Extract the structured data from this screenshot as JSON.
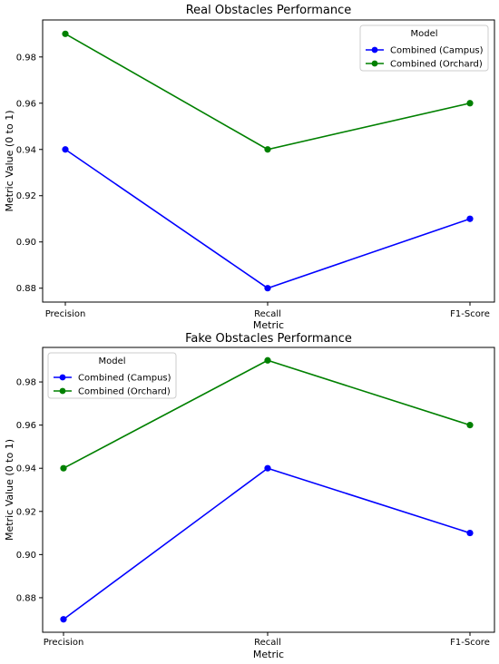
{
  "chart_data": [
    {
      "type": "line",
      "title": "Real Obstacles Performance",
      "xlabel": "Metric",
      "ylabel": "Metric Value (0 to 1)",
      "categories": [
        "Precision",
        "Recall",
        "F1-Score"
      ],
      "ylim": [
        0.874,
        0.996
      ],
      "yticks": [
        "0.88",
        "0.90",
        "0.92",
        "0.94",
        "0.96",
        "0.98"
      ],
      "grid": false,
      "legend": {
        "title": "Model",
        "placement": "top-right"
      },
      "series": [
        {
          "name": "Combined (Campus)",
          "color": "#0000ff",
          "values": [
            0.94,
            0.88,
            0.91
          ]
        },
        {
          "name": "Combined (Orchard)",
          "color": "#008000",
          "values": [
            0.99,
            0.94,
            0.96
          ]
        }
      ]
    },
    {
      "type": "line",
      "title": "Fake Obstacles Performance",
      "xlabel": "Metric",
      "ylabel": "Metric Value (0 to 1)",
      "categories": [
        "Precision",
        "Recall",
        "F1-Score"
      ],
      "ylim": [
        0.864,
        0.996
      ],
      "yticks": [
        "0.88",
        "0.90",
        "0.92",
        "0.94",
        "0.96",
        "0.98"
      ],
      "grid": false,
      "legend": {
        "title": "Model",
        "placement": "top-left"
      },
      "series": [
        {
          "name": "Combined (Campus)",
          "color": "#0000ff",
          "values": [
            0.87,
            0.94,
            0.91
          ]
        },
        {
          "name": "Combined (Orchard)",
          "color": "#008000",
          "values": [
            0.94,
            0.99,
            0.96
          ]
        }
      ]
    }
  ]
}
